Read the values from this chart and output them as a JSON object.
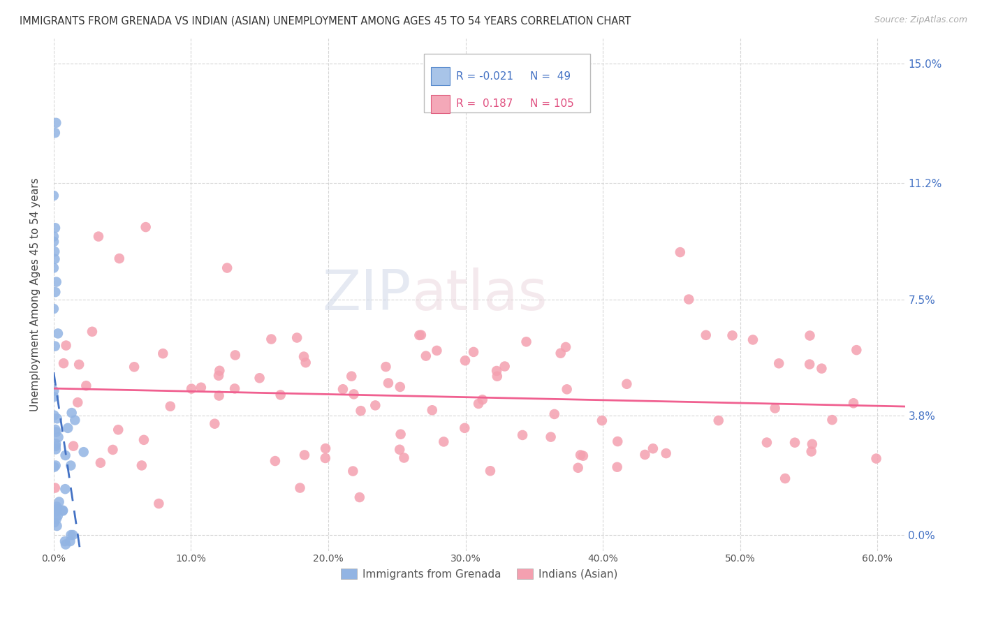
{
  "title": "IMMIGRANTS FROM GRENADA VS INDIAN (ASIAN) UNEMPLOYMENT AMONG AGES 45 TO 54 YEARS CORRELATION CHART",
  "source": "Source: ZipAtlas.com",
  "xlabel_vals": [
    0.0,
    0.1,
    0.2,
    0.3,
    0.4,
    0.5,
    0.6
  ],
  "ylabel_vals": [
    0.0,
    0.038,
    0.075,
    0.112,
    0.15
  ],
  "ylabel_label": "Unemployment Among Ages 45 to 54 years",
  "legend_labels": [
    "Immigrants from Grenada",
    "Indians (Asian)"
  ],
  "R_grenada": -0.021,
  "N_grenada": 49,
  "R_indian": 0.187,
  "N_indian": 105,
  "grenada_color": "#92b4e3",
  "indian_color": "#f4a0b0",
  "grenada_line_color": "#4472c4",
  "indian_line_color": "#f06090",
  "watermark_zip": "ZIP",
  "watermark_atlas": "atlas",
  "xlim": [
    0.0,
    0.62
  ],
  "ylim": [
    -0.005,
    0.158
  ]
}
